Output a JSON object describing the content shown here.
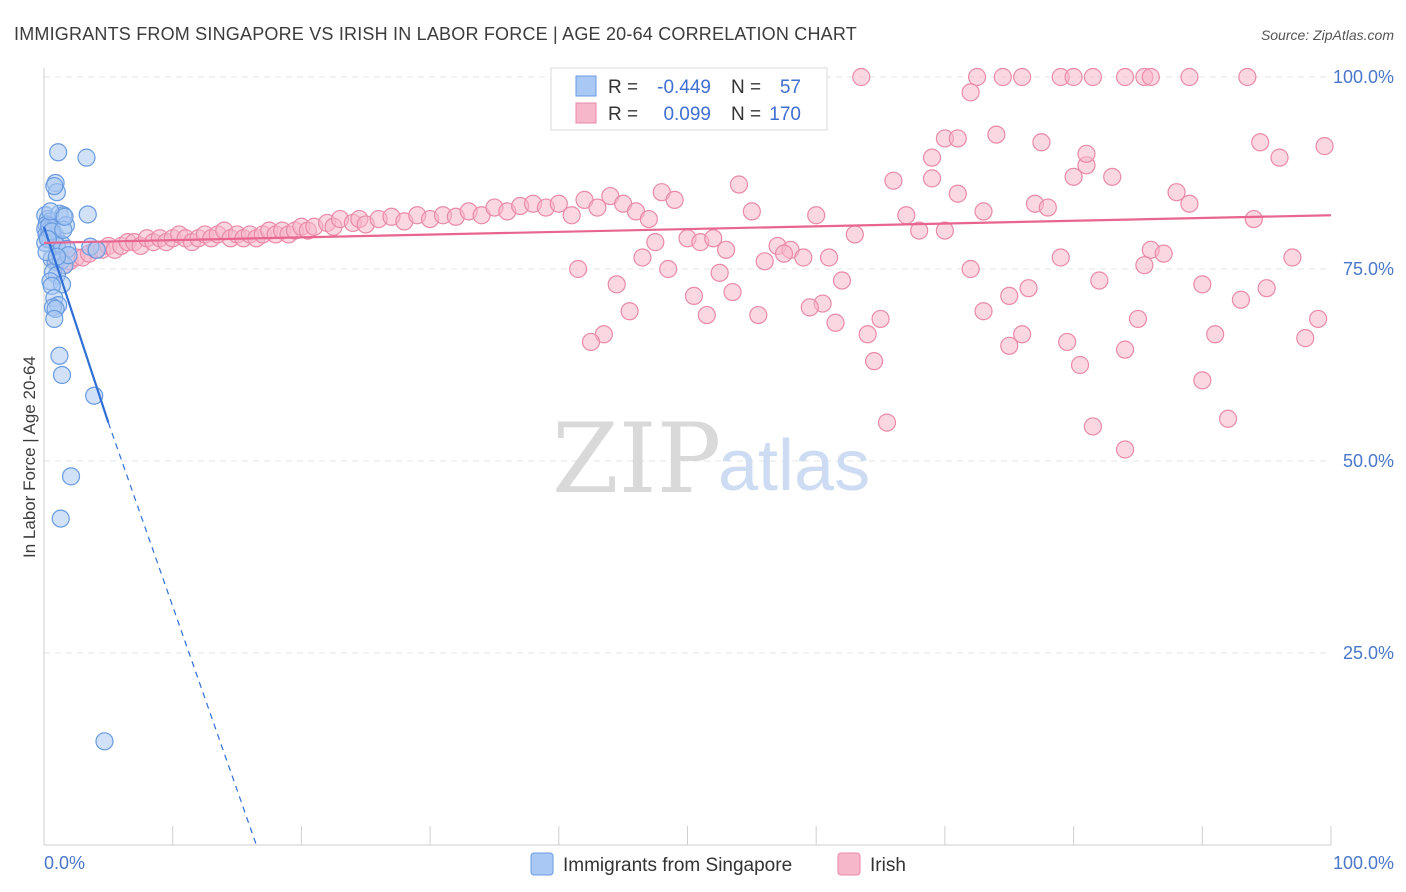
{
  "title": "IMMIGRANTS FROM SINGAPORE VS IRISH IN LABOR FORCE | AGE 20-64 CORRELATION CHART",
  "source": "Source: ZipAtlas.com",
  "watermark": {
    "zip": "ZIP",
    "atlas": "atlas"
  },
  "colors": {
    "blue_fill": "#a9c8f3",
    "blue_stroke": "#6a9be0",
    "blue_line": "#2f6fd6",
    "pink_fill": "#f7b7cb",
    "pink_stroke": "#e98aa8",
    "pink_line": "#e8658f",
    "grid": "#e4e4e4",
    "axis": "#cfcfcf",
    "tick_text": "#4a77c9"
  },
  "legend": {
    "rows": [
      {
        "r_label": "R =",
        "r_value": "-0.449",
        "n_label": "N =",
        "n_value": "57"
      },
      {
        "r_label": "R =",
        "r_value": "0.099",
        "n_label": "N =",
        "n_value": "170"
      }
    ]
  },
  "chart_data": {
    "type": "scatter",
    "title": "IMMIGRANTS FROM SINGAPORE VS IRISH IN LABOR FORCE | AGE 20-64 CORRELATION CHART",
    "xlabel": "",
    "ylabel": "In Labor Force | Age 20-64",
    "xlim": [
      0,
      100
    ],
    "ylim": [
      0,
      100
    ],
    "x_tick_labels": [
      "0.0%",
      "100.0%"
    ],
    "y_ticks": [
      25,
      50,
      75,
      100
    ],
    "y_tick_labels": [
      "25.0%",
      "50.0%",
      "75.0%",
      "100.0%"
    ],
    "series": [
      {
        "name": "Immigrants from Singapore",
        "color": "blue",
        "r": -0.449,
        "n": 57,
        "trend": {
          "x0": 0,
          "y0": 80.5,
          "x1": 5.0,
          "y1": 55.0,
          "dash_x1": 16.5,
          "dash_y1": 0
        },
        "points": [
          [
            1.1,
            90.2
          ],
          [
            3.3,
            89.5
          ],
          [
            0.9,
            86.2
          ],
          [
            1.0,
            85.0
          ],
          [
            0.8,
            85.8
          ],
          [
            0.1,
            82.0
          ],
          [
            0.3,
            81.5
          ],
          [
            0.5,
            81.2
          ],
          [
            0.2,
            80.8
          ],
          [
            0.6,
            80.5
          ],
          [
            0.1,
            80.2
          ],
          [
            0.4,
            80.0
          ],
          [
            0.7,
            79.8
          ],
          [
            0.2,
            79.5
          ],
          [
            0.9,
            79.3
          ],
          [
            0.3,
            79.0
          ],
          [
            0.5,
            78.8
          ],
          [
            0.8,
            78.6
          ],
          [
            0.1,
            78.4
          ],
          [
            1.2,
            82.2
          ],
          [
            1.5,
            82.0
          ],
          [
            3.4,
            82.1
          ],
          [
            1.7,
            80.7
          ],
          [
            1.4,
            78.2
          ],
          [
            1.0,
            78.0
          ],
          [
            1.8,
            77.6
          ],
          [
            3.6,
            77.9
          ],
          [
            4.1,
            77.5
          ],
          [
            0.6,
            76.3
          ],
          [
            0.9,
            75.9
          ],
          [
            1.3,
            76.0
          ],
          [
            1.6,
            75.5
          ],
          [
            0.7,
            74.6
          ],
          [
            1.0,
            74.2
          ],
          [
            0.5,
            73.4
          ],
          [
            1.4,
            73.0
          ],
          [
            0.6,
            72.8
          ],
          [
            0.8,
            71.2
          ],
          [
            1.1,
            70.3
          ],
          [
            0.7,
            70.0
          ],
          [
            0.9,
            69.8
          ],
          [
            0.8,
            68.5
          ],
          [
            1.2,
            63.7
          ],
          [
            1.4,
            61.2
          ],
          [
            3.9,
            58.5
          ],
          [
            2.1,
            48.0
          ],
          [
            1.3,
            42.5
          ],
          [
            4.7,
            13.5
          ],
          [
            0.4,
            80.6
          ],
          [
            0.6,
            79.9
          ],
          [
            1.5,
            80.1
          ],
          [
            0.3,
            78.9
          ],
          [
            1.9,
            76.8
          ],
          [
            0.2,
            77.2
          ],
          [
            1.0,
            76.6
          ],
          [
            0.5,
            82.5
          ],
          [
            1.6,
            81.8
          ]
        ]
      },
      {
        "name": "Irish",
        "color": "pink",
        "r": 0.099,
        "n": 170,
        "trend": {
          "x0": 0,
          "y0": 78.4,
          "x1": 100,
          "y1": 82.0
        },
        "points": [
          [
            0.5,
            79.5
          ],
          [
            1.0,
            76.0
          ],
          [
            1.5,
            75.5
          ],
          [
            2.0,
            76.0
          ],
          [
            2.5,
            76.5
          ],
          [
            3.0,
            76.5
          ],
          [
            3.5,
            77.0
          ],
          [
            4.0,
            77.5
          ],
          [
            4.5,
            77.5
          ],
          [
            5.0,
            78.0
          ],
          [
            5.5,
            77.5
          ],
          [
            6.0,
            78.0
          ],
          [
            6.5,
            78.5
          ],
          [
            7.0,
            78.5
          ],
          [
            7.5,
            78.0
          ],
          [
            8.0,
            79.0
          ],
          [
            8.5,
            78.5
          ],
          [
            9.0,
            79.0
          ],
          [
            9.5,
            78.5
          ],
          [
            10.0,
            79.0
          ],
          [
            10.5,
            79.5
          ],
          [
            11.0,
            79.0
          ],
          [
            11.5,
            78.5
          ],
          [
            12.0,
            79.0
          ],
          [
            12.5,
            79.5
          ],
          [
            13.0,
            79.0
          ],
          [
            13.5,
            79.5
          ],
          [
            14.0,
            80.0
          ],
          [
            14.5,
            79.0
          ],
          [
            15.0,
            79.5
          ],
          [
            15.5,
            79.0
          ],
          [
            16.0,
            79.5
          ],
          [
            16.5,
            79.0
          ],
          [
            17.0,
            79.5
          ],
          [
            17.5,
            80.0
          ],
          [
            18.0,
            79.5
          ],
          [
            18.5,
            80.0
          ],
          [
            19.0,
            79.5
          ],
          [
            19.5,
            80.0
          ],
          [
            20.0,
            80.5
          ],
          [
            20.5,
            80.0
          ],
          [
            21.0,
            80.5
          ],
          [
            22.0,
            81.0
          ],
          [
            22.5,
            80.5
          ],
          [
            23.0,
            81.5
          ],
          [
            24.0,
            81.0
          ],
          [
            24.5,
            81.5
          ],
          [
            25.0,
            80.8
          ],
          [
            26.0,
            81.5
          ],
          [
            27.0,
            81.8
          ],
          [
            28.0,
            81.2
          ],
          [
            29.0,
            82.0
          ],
          [
            30.0,
            81.5
          ],
          [
            31.0,
            82.0
          ],
          [
            32.0,
            81.8
          ],
          [
            33.0,
            82.5
          ],
          [
            34.0,
            82.0
          ],
          [
            35.0,
            83.0
          ],
          [
            36.0,
            82.5
          ],
          [
            37.0,
            83.2
          ],
          [
            38.0,
            83.5
          ],
          [
            39.0,
            83.0
          ],
          [
            40.0,
            83.5
          ],
          [
            41.0,
            82.0
          ],
          [
            42.0,
            84.0
          ],
          [
            43.0,
            83.0
          ],
          [
            44.0,
            84.5
          ],
          [
            45.0,
            83.5
          ],
          [
            46.0,
            82.5
          ],
          [
            47.0,
            81.5
          ],
          [
            48.0,
            85.0
          ],
          [
            49.0,
            84.0
          ],
          [
            50.0,
            79.0
          ],
          [
            51.0,
            78.5
          ],
          [
            52.0,
            79.0
          ],
          [
            53.0,
            77.5
          ],
          [
            54.0,
            86.0
          ],
          [
            55.0,
            82.5
          ],
          [
            56.0,
            76.0
          ],
          [
            57.0,
            78.0
          ],
          [
            58.0,
            77.5
          ],
          [
            59.0,
            76.5
          ],
          [
            60.0,
            82.0
          ],
          [
            61.0,
            76.5
          ],
          [
            62.0,
            73.5
          ],
          [
            63.0,
            79.5
          ],
          [
            64.0,
            66.5
          ],
          [
            65.0,
            68.5
          ],
          [
            66.0,
            86.5
          ],
          [
            67.0,
            82.0
          ],
          [
            68.0,
            80.0
          ],
          [
            69.0,
            86.8
          ],
          [
            70.0,
            80.0
          ],
          [
            71.0,
            84.8
          ],
          [
            72.0,
            75.0
          ],
          [
            73.0,
            69.5
          ],
          [
            74.0,
            92.5
          ],
          [
            75.0,
            71.5
          ],
          [
            76.0,
            66.5
          ],
          [
            77.0,
            83.5
          ],
          [
            78.0,
            83.0
          ],
          [
            79.0,
            76.5
          ],
          [
            80.0,
            87.0
          ],
          [
            81.0,
            88.5
          ],
          [
            82.0,
            73.5
          ],
          [
            83.0,
            87.0
          ],
          [
            84.0,
            64.5
          ],
          [
            85.0,
            68.5
          ],
          [
            86.0,
            77.5
          ],
          [
            87.0,
            77.0
          ],
          [
            88.0,
            85.0
          ],
          [
            89.0,
            83.5
          ],
          [
            90.0,
            73.0
          ],
          [
            91.0,
            66.5
          ],
          [
            92.0,
            55.5
          ],
          [
            93.0,
            71.0
          ],
          [
            94.0,
            81.5
          ],
          [
            95.0,
            72.5
          ],
          [
            96.0,
            89.5
          ],
          [
            97.0,
            76.5
          ],
          [
            98.0,
            66.0
          ],
          [
            99.0,
            68.5
          ],
          [
            63.5,
            100.0
          ],
          [
            72.5,
            100.0
          ],
          [
            74.5,
            100.0
          ],
          [
            76.0,
            100.0
          ],
          [
            79.0,
            100.0
          ],
          [
            80.0,
            100.0
          ],
          [
            81.5,
            100.0
          ],
          [
            84.0,
            100.0
          ],
          [
            85.5,
            100.0
          ],
          [
            86.0,
            100.0
          ],
          [
            89.0,
            100.0
          ],
          [
            93.5,
            100.0
          ],
          [
            72.0,
            98.0
          ],
          [
            70.0,
            92.0
          ],
          [
            69.0,
            89.5
          ],
          [
            71.0,
            92.0
          ],
          [
            73.0,
            82.5
          ],
          [
            77.5,
            91.5
          ],
          [
            81.0,
            90.0
          ],
          [
            94.5,
            91.5
          ],
          [
            99.5,
            91.0
          ],
          [
            75.0,
            65.0
          ],
          [
            76.5,
            72.5
          ],
          [
            79.5,
            65.5
          ],
          [
            80.5,
            62.5
          ],
          [
            81.5,
            54.5
          ],
          [
            84.0,
            51.5
          ],
          [
            85.5,
            75.5
          ],
          [
            90.0,
            60.5
          ],
          [
            64.5,
            63.0
          ],
          [
            65.5,
            55.0
          ],
          [
            61.5,
            68.0
          ],
          [
            60.5,
            70.5
          ],
          [
            57.5,
            77.0
          ],
          [
            59.5,
            70.0
          ],
          [
            53.5,
            72.0
          ],
          [
            52.5,
            74.5
          ],
          [
            51.5,
            69.0
          ],
          [
            55.5,
            69.0
          ],
          [
            50.5,
            71.5
          ],
          [
            48.5,
            75.0
          ],
          [
            46.5,
            76.5
          ],
          [
            45.5,
            69.5
          ],
          [
            44.5,
            73.0
          ],
          [
            43.5,
            66.5
          ],
          [
            42.5,
            65.5
          ],
          [
            41.5,
            75.0
          ],
          [
            47.5,
            78.5
          ]
        ]
      }
    ]
  },
  "axis": {
    "ylabel": "In Labor Force | Age 20-64",
    "x_left": "0.0%",
    "x_right": "100.0%"
  },
  "bottom_legend": [
    {
      "label": "Immigrants from Singapore"
    },
    {
      "label": "Irish"
    }
  ]
}
